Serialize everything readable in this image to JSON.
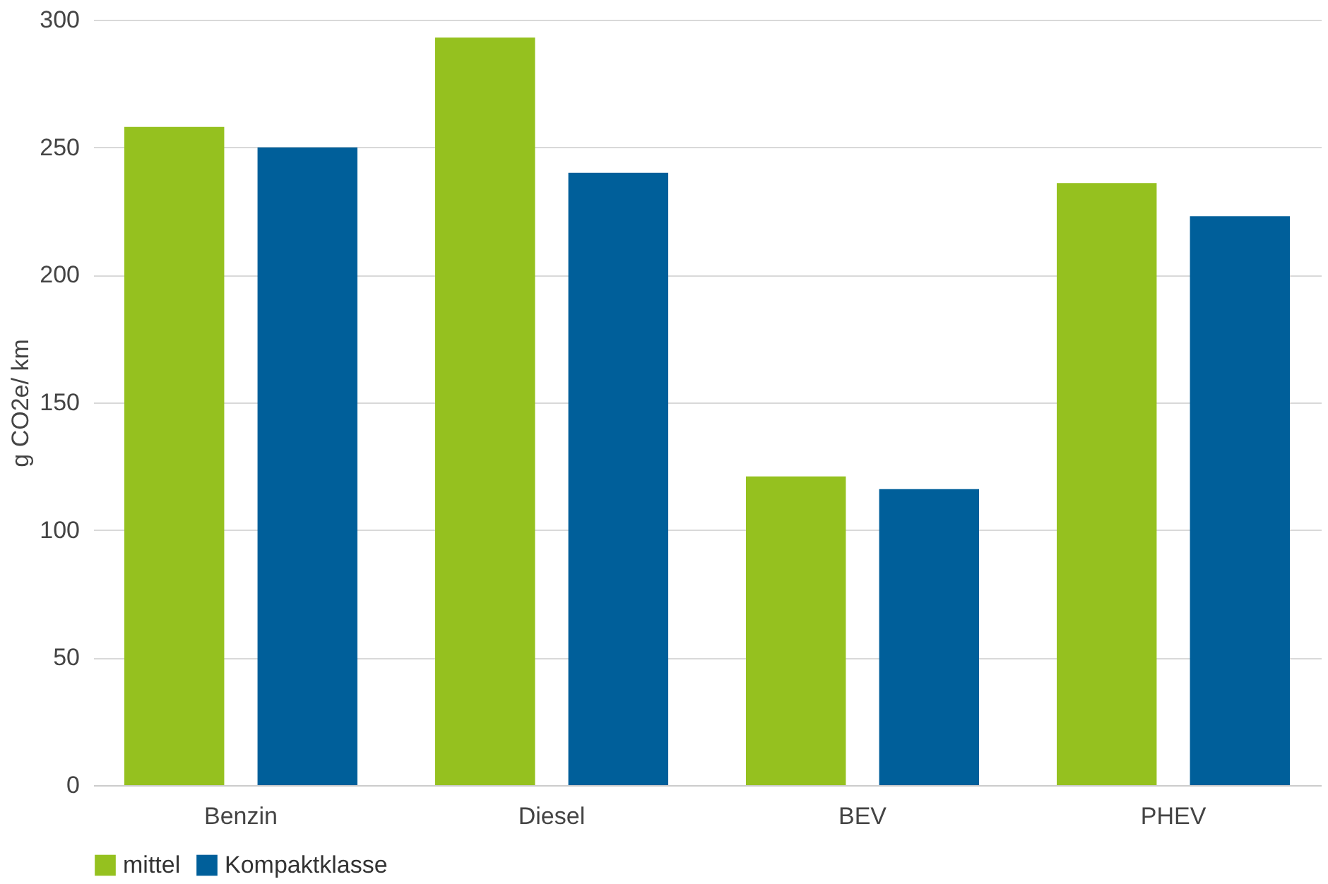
{
  "chart_data": {
    "type": "bar",
    "ylabel": "g CO2e/ km",
    "categories": [
      "Benzin",
      "Diesel",
      "BEV",
      "PHEV"
    ],
    "series": [
      {
        "name": "mittel",
        "color": "#95c11f",
        "values": [
          258,
          293,
          121,
          236
        ]
      },
      {
        "name": "Kompaktklasse",
        "color": "#005f9a",
        "values": [
          250,
          240,
          116,
          223
        ]
      }
    ],
    "ylim": [
      0,
      300
    ],
    "yticks": [
      0,
      50,
      100,
      150,
      200,
      250,
      300
    ],
    "grid": "y",
    "legend": "bottom"
  }
}
